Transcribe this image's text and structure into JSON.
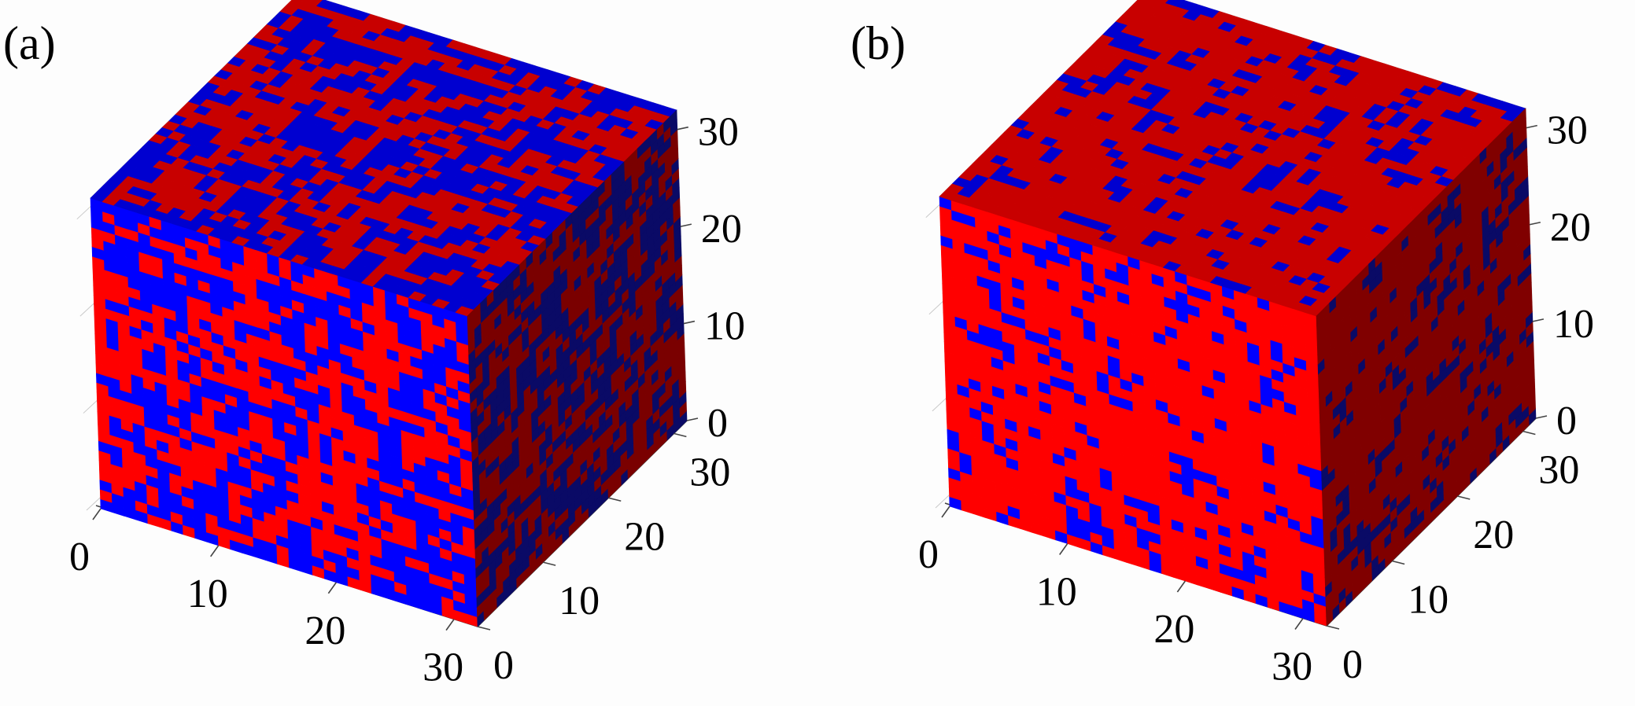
{
  "colors": {
    "phase_a": "#ff0000",
    "phase_b": "#0000ff",
    "background": "#fdfdfd"
  },
  "panels": [
    {
      "label": "(a)",
      "red_fraction": 0.5,
      "x_ticks": [
        "0",
        "10",
        "20",
        "30"
      ],
      "y_ticks": [
        "0",
        "10",
        "20",
        "30"
      ],
      "z_ticks": [
        "0",
        "10",
        "20",
        "30"
      ]
    },
    {
      "label": "(b)",
      "red_fraction": 0.8,
      "x_ticks": [
        "0",
        "10",
        "20",
        "30"
      ],
      "y_ticks": [
        "0",
        "10",
        "20",
        "30"
      ],
      "z_ticks": [
        "0",
        "10",
        "20",
        "30"
      ]
    }
  ],
  "chart_data": [
    {
      "type": "heatmap",
      "grid_size": 32,
      "x_range": [
        0,
        32
      ],
      "y_range": [
        0,
        32
      ],
      "z_range": [
        0,
        32
      ],
      "x_ticks": [
        0,
        10,
        20,
        30
      ],
      "y_ticks": [
        0,
        10,
        20,
        30
      ],
      "z_ticks": [
        0,
        10,
        20,
        30
      ],
      "values": "binary two-phase voxel field (red / blue), roughly equal fractions"
    },
    {
      "type": "heatmap",
      "grid_size": 32,
      "x_range": [
        0,
        32
      ],
      "y_range": [
        0,
        32
      ],
      "z_range": [
        0,
        32
      ],
      "x_ticks": [
        0,
        10,
        20,
        30
      ],
      "y_ticks": [
        0,
        10,
        20,
        30
      ],
      "z_ticks": [
        0,
        10,
        20,
        30
      ],
      "values": "binary two-phase voxel field (red / blue), mostly red"
    }
  ]
}
